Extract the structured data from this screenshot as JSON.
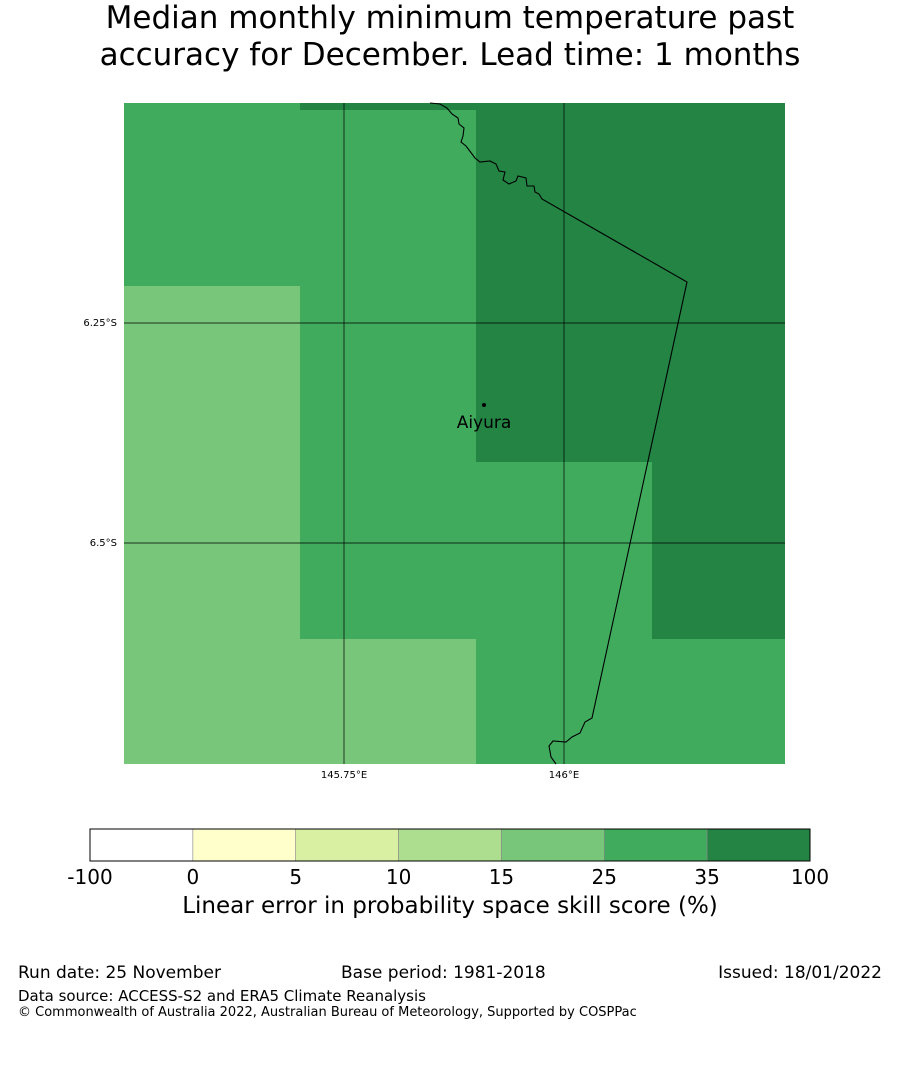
{
  "title_line1": "Median monthly minimum temperature past",
  "title_line2": "accuracy for December. Lead time: 1 months",
  "map": {
    "lat_labels": [
      "6.25°S",
      "6.5°S"
    ],
    "lon_labels": [
      "145.75°E",
      "146°E"
    ],
    "place": "Aiyura",
    "colors": {
      "light": "#78c679",
      "mid": "#41ab5d",
      "dark": "#238443"
    }
  },
  "colorbar": {
    "ticks": [
      "-100",
      "0",
      "5",
      "10",
      "15",
      "25",
      "35",
      "100"
    ],
    "colors": [
      "#ffffff",
      "#ffffcc",
      "#d9f0a3",
      "#addd8e",
      "#78c679",
      "#41ab5d",
      "#238443"
    ],
    "label": "Linear error in probability space skill score (%)"
  },
  "footer": {
    "run_date": "Run date: 25 November",
    "base_period": "Base period: 1981-2018",
    "issued": "Issued: 18/01/2022",
    "data_source": "Data source: ACCESS-S2 and ERA5 Climate Reanalysis",
    "copyright": "© Commonwealth of Australia 2022, Australian Bureau of Meteorology, Supported by COSPPac"
  }
}
